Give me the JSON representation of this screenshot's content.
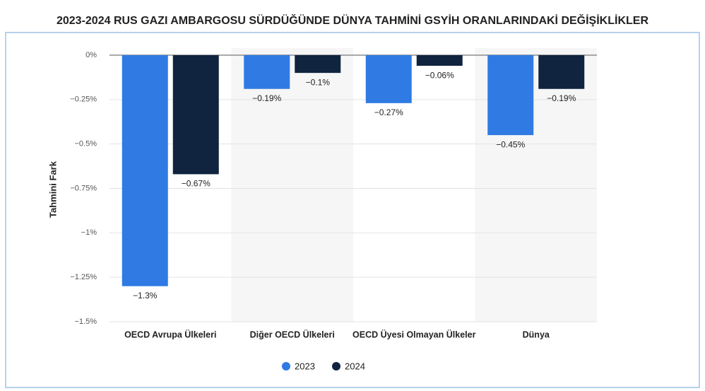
{
  "chart_data": {
    "type": "bar",
    "title": "2023-2024 RUS GAZI AMBARGOSU SÜRDÜĞÜNDE DÜNYA TAHMİNİ GSYİH ORANLARINDAKİ DEĞİŞİKLİKLER",
    "ylabel": "Tahmini Fark",
    "categories": [
      "OECD Avrupa Ülkeleri",
      "Diğer OECD Ülkeleri",
      "OECD Üyesi Olmayan Ülkeler",
      "Dünya"
    ],
    "series": [
      {
        "name": "2023",
        "color": "#2f7be3",
        "values": [
          -1.3,
          -0.19,
          -0.27,
          -0.45
        ],
        "value_labels": [
          "−1.3%",
          "−0.19%",
          "−0.27%",
          "−0.45%"
        ]
      },
      {
        "name": "2024",
        "color": "#10243f",
        "values": [
          -0.67,
          -0.1,
          -0.06,
          -0.19
        ],
        "value_labels": [
          "−0.67%",
          "−0.1%",
          "−0.06%",
          "−0.19%"
        ]
      }
    ],
    "ylim": [
      -1.5,
      0
    ],
    "yticks": [
      {
        "value": 0,
        "label": "0%"
      },
      {
        "value": -0.25,
        "label": "−0.25%"
      },
      {
        "value": -0.5,
        "label": "−0.5%"
      },
      {
        "value": -0.75,
        "label": "−0.75%"
      },
      {
        "value": -1,
        "label": "−1%"
      },
      {
        "value": -1.25,
        "label": "−1.25%"
      },
      {
        "value": -1.5,
        "label": "−1.5%"
      }
    ],
    "grid": true
  }
}
